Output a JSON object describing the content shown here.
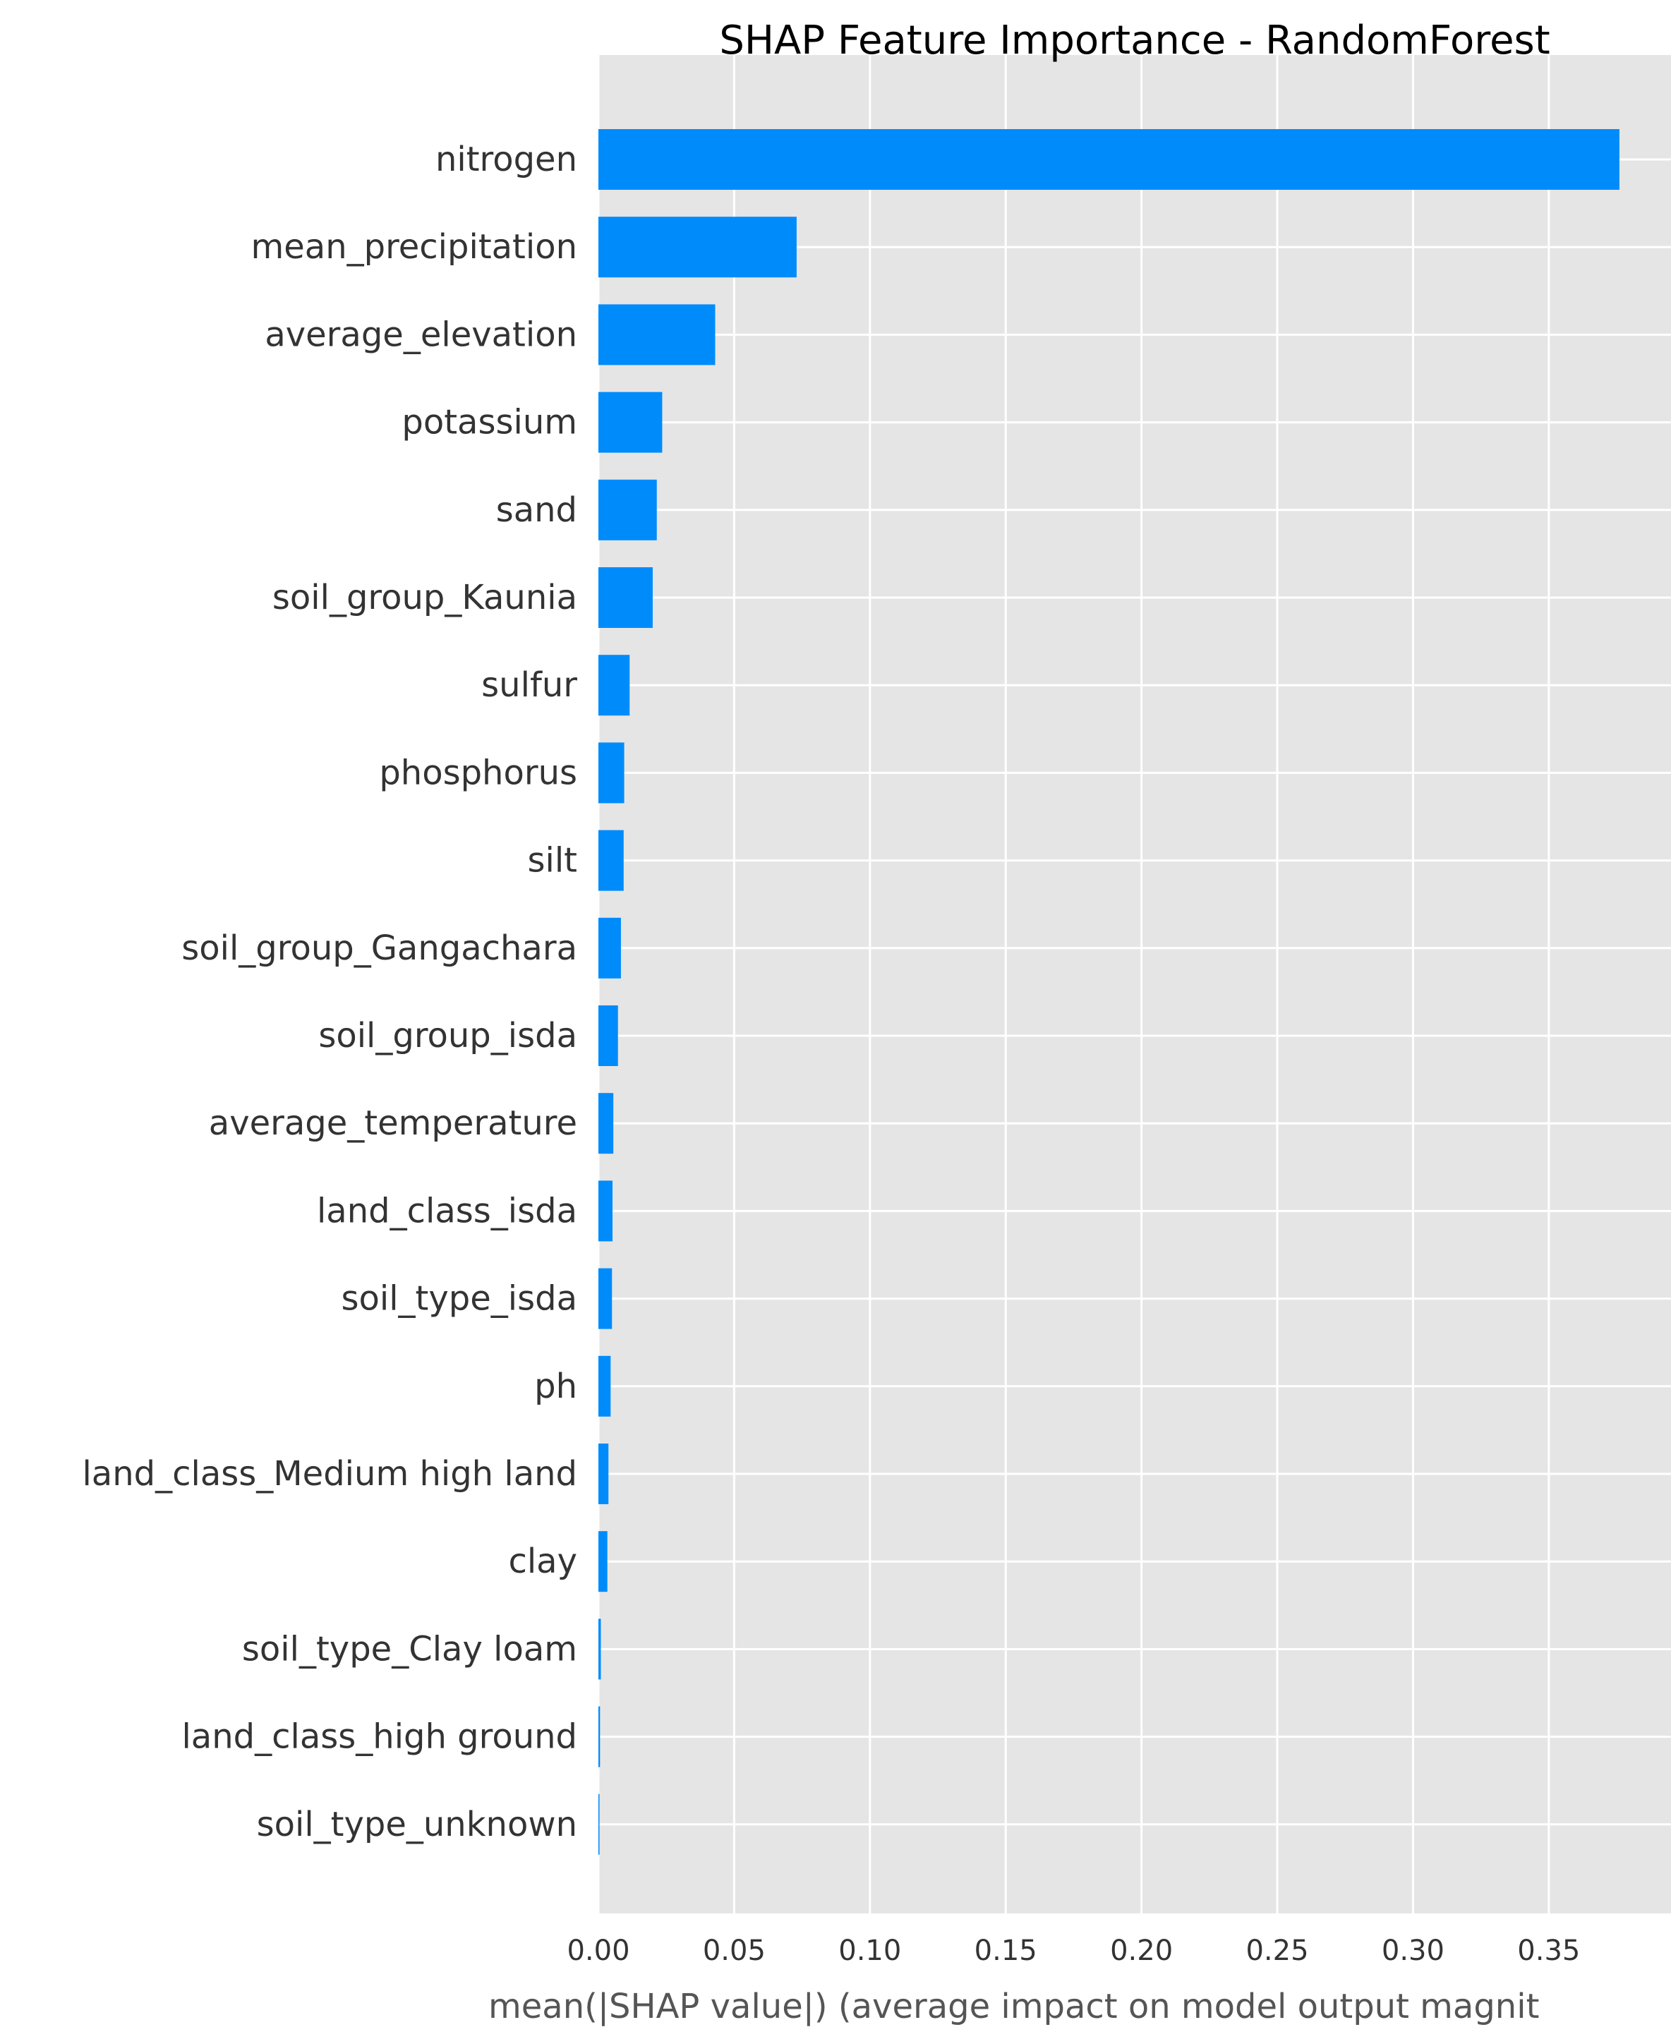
{
  "chart_data": {
    "type": "bar",
    "orientation": "horizontal",
    "title": "SHAP Feature Importance - RandomForest",
    "xlabel": "mean(|SHAP value|) (average impact on model output magnit",
    "ylabel": "",
    "xlim": [
      0,
      0.395
    ],
    "xticks": [
      0.0,
      0.05,
      0.1,
      0.15,
      0.2,
      0.25,
      0.3,
      0.35
    ],
    "xtick_labels": [
      "0.00",
      "0.05",
      "0.10",
      "0.15",
      "0.20",
      "0.25",
      "0.30",
      "0.35"
    ],
    "grid": true,
    "legend": "none",
    "bar_color": "#008bfb",
    "background_color": "#e5e5e5",
    "grid_color": "#ffffff",
    "categories": [
      "nitrogen",
      "mean_precipitation",
      "average_elevation",
      "potassium",
      "sand",
      "soil_group_Kaunia",
      "sulfur",
      "phosphorus",
      "silt",
      "soil_group_Gangachara",
      "soil_group_isda",
      "average_temperature",
      "land_class_isda",
      "soil_type_isda",
      "ph",
      "land_class_Medium high land",
      "clay",
      "soil_type_Clay loam",
      "land_class_high ground",
      "soil_type_unknown"
    ],
    "values": [
      0.376,
      0.073,
      0.043,
      0.0235,
      0.0215,
      0.02,
      0.0115,
      0.0095,
      0.0093,
      0.0083,
      0.0072,
      0.0055,
      0.0052,
      0.005,
      0.0045,
      0.0037,
      0.0033,
      0.0009,
      0.0006,
      0.0003
    ]
  }
}
